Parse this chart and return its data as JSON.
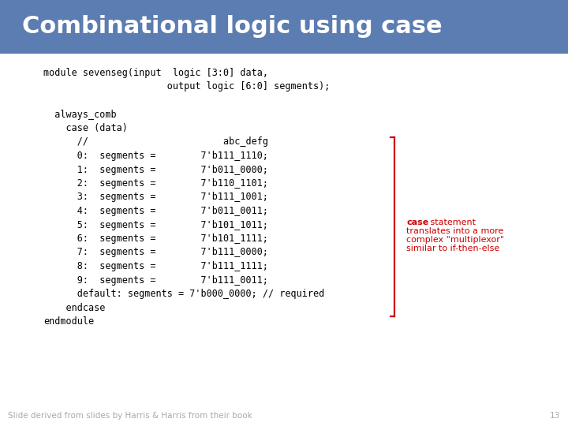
{
  "title": "Combinational logic using case",
  "title_bg_color": "#5b7db1",
  "title_text_color": "#ffffff",
  "title_fontsize": 22,
  "bg_color": "#ffffff",
  "code_lines": [
    "module sevenseg(input  logic [3:0] data,",
    "                      output logic [6:0] segments);",
    "",
    "  always_comb",
    "    case (data)",
    "      //                        abc_defg",
    "      0:  segments =        7'b111_1110;",
    "      1:  segments =        7'b011_0000;",
    "      2:  segments =        7'b110_1101;",
    "      3:  segments =        7'b111_1001;",
    "      4:  segments =        7'b011_0011;",
    "      5:  segments =        7'b101_1011;",
    "      6:  segments =        7'b101_1111;",
    "      7:  segments =        7'b111_0000;",
    "      8:  segments =        7'b111_1111;",
    "      9:  segments =        7'b111_0011;",
    "      default: segments = 7'b000_0000; // required",
    "    endcase",
    "endmodule"
  ],
  "code_font_size": 8.5,
  "code_color": "#000000",
  "annotation_bold": "case",
  "annotation_rest": " statement\ntranslates into a more\ncomplex \"multiplexor\"\nsimilar to if-then-else",
  "annotation_color": "#cc0000",
  "annotation_fontsize": 8.0,
  "footer_text": "Slide derived from slides by Harris & Harris from their book",
  "footer_number": "13",
  "footer_color": "#aaaaaa",
  "footer_fontsize": 7.5
}
